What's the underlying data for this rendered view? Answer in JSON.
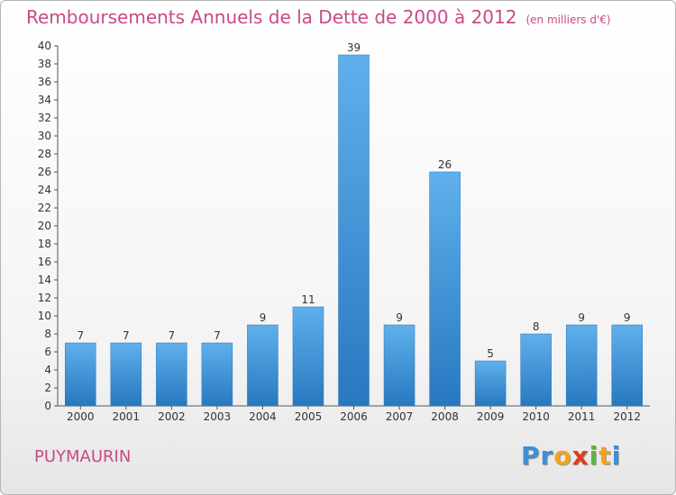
{
  "page": {
    "title": "Remboursements Annuels de la Dette de 2000 à 2012",
    "subtitle": "(en milliers d'€)",
    "city": "PUYMAURIN",
    "logo_letters": [
      {
        "char": "P",
        "color": "#3d8fd6"
      },
      {
        "char": "r",
        "color": "#3d8fd6"
      },
      {
        "char": "o",
        "color": "#f2a31a"
      },
      {
        "char": "x",
        "color": "#e23b1e"
      },
      {
        "char": "i",
        "color": "#62b33a"
      },
      {
        "char": "t",
        "color": "#f2a31a"
      },
      {
        "char": "i",
        "color": "#3d8fd6"
      }
    ]
  },
  "chart_data": {
    "type": "bar",
    "title": "Remboursements Annuels de la Dette de 2000 à 2012",
    "subtitle": "(en milliers d'€)",
    "xlabel": "",
    "ylabel": "",
    "categories": [
      "2000",
      "2001",
      "2002",
      "2003",
      "2004",
      "2005",
      "2006",
      "2007",
      "2008",
      "2009",
      "2010",
      "2011",
      "2012"
    ],
    "values": [
      7,
      7,
      7,
      7,
      9,
      11,
      39,
      9,
      26,
      5,
      8,
      9,
      9
    ],
    "ylim": [
      0,
      40
    ],
    "yticks": [
      0,
      2,
      4,
      6,
      8,
      10,
      12,
      14,
      16,
      18,
      20,
      22,
      24,
      26,
      28,
      30,
      32,
      34,
      36,
      38,
      40
    ],
    "grid": false,
    "legend": "none",
    "bar_color": "#3d8fd6",
    "title_color": "#c94a87"
  }
}
